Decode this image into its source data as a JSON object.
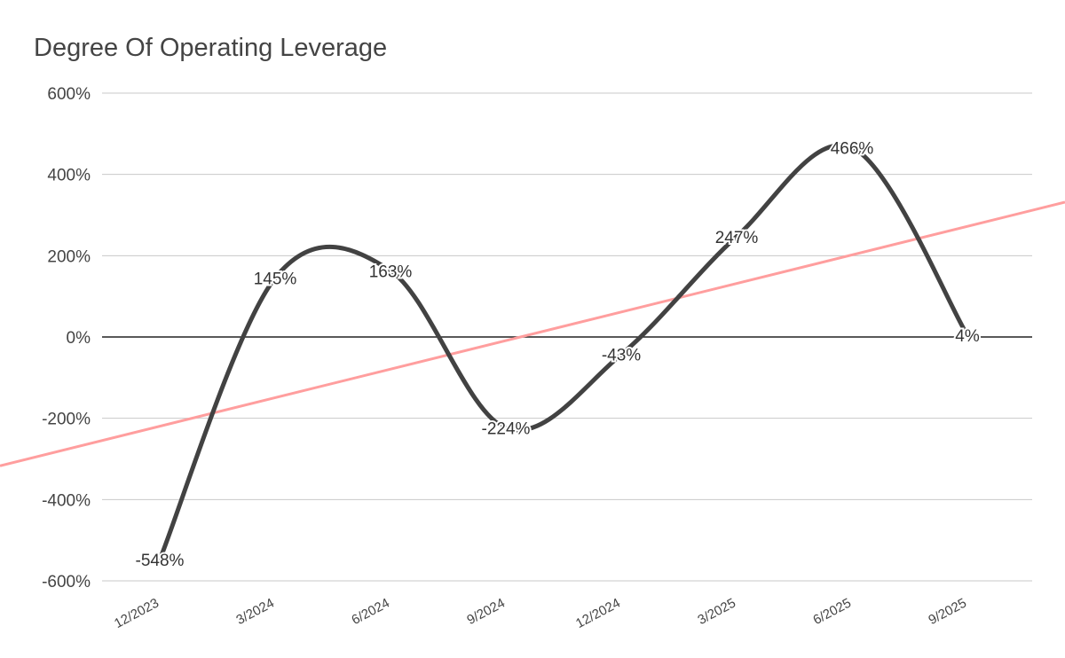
{
  "chart_data": {
    "type": "line",
    "title": "Degree Of Operating Leverage",
    "categories": [
      "12/2023",
      "3/2024",
      "6/2024",
      "9/2024",
      "12/2024",
      "3/2025",
      "6/2025",
      "9/2025"
    ],
    "series": [
      {
        "color": "#424242",
        "values": [
          -548,
          145,
          163,
          -224,
          -43,
          247,
          466,
          4
        ],
        "value_labels": [
          "-548%",
          "145%",
          "163%",
          "-224%",
          "-43%",
          "247%",
          "466%",
          "4%"
        ]
      }
    ],
    "trendline": {
      "color": "#ff9e9e"
    },
    "smooth": true,
    "ylim": [
      -600,
      600
    ],
    "yticks": [
      {
        "value": -600,
        "label": "-600%"
      },
      {
        "value": -400,
        "label": "-400%"
      },
      {
        "value": -200,
        "label": "-200%"
      },
      {
        "value": 0,
        "label": "0%"
      },
      {
        "value": 200,
        "label": "200%"
      },
      {
        "value": 400,
        "label": "400%"
      },
      {
        "value": 600,
        "label": "600%"
      }
    ],
    "grid": true
  }
}
